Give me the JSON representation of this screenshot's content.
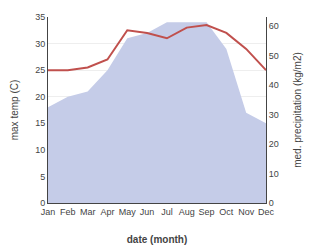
{
  "chart_data": {
    "type": "line",
    "categories": [
      "Jan",
      "Feb",
      "Mar",
      "Apr",
      "May",
      "Jun",
      "Jul",
      "Aug",
      "Sep",
      "Oct",
      "Nov",
      "Dec"
    ],
    "series": [
      {
        "type": "area",
        "color": "#c5cce8",
        "values": [
          18,
          20,
          21,
          25,
          31,
          32,
          34,
          34,
          34,
          29,
          17,
          15
        ]
      },
      {
        "type": "line",
        "color": "#c0504d",
        "values": [
          25,
          25,
          25.5,
          27,
          32.5,
          32,
          31,
          33,
          33.5,
          32,
          29,
          25
        ]
      }
    ],
    "xlabel": "date (month)",
    "ylabel": "max temp (C)",
    "y2label": "med. precipitation (kg/m2)",
    "ylim": [
      0,
      35
    ],
    "yticks": [
      0,
      5,
      10,
      15,
      20,
      25,
      30,
      35
    ],
    "y2lim": [
      0,
      63
    ],
    "y2ticks": [
      0,
      10,
      20,
      30,
      40,
      50,
      60
    ],
    "grid": true
  }
}
